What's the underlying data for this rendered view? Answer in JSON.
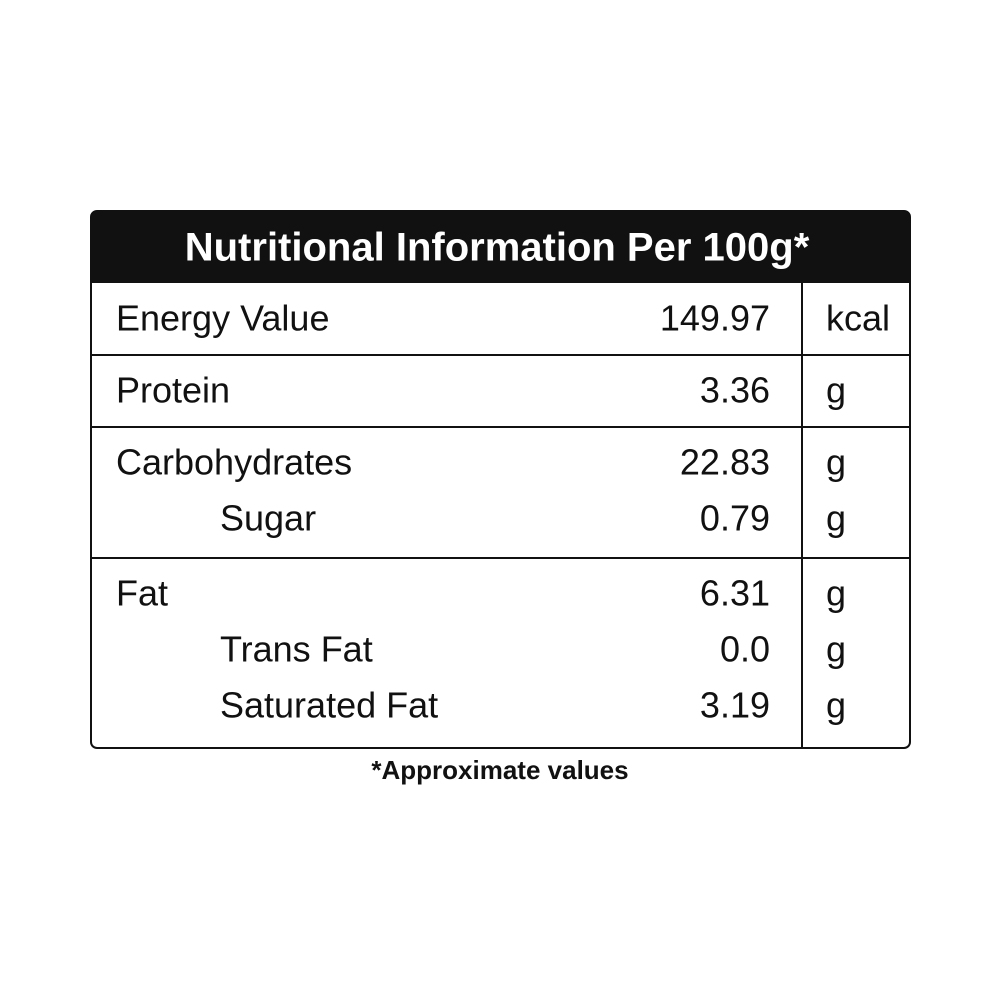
{
  "title": "Nutritional Information Per 100g*",
  "groups": [
    {
      "label": "Energy Value",
      "value": "149.97",
      "unit": "kcal",
      "sub": []
    },
    {
      "label": "Protein",
      "value": "3.36",
      "unit": "g",
      "sub": []
    },
    {
      "label": "Carbohydrates",
      "value": "22.83",
      "unit": "g",
      "sub": [
        {
          "label": "Sugar",
          "value": "0.79",
          "unit": "g"
        }
      ]
    },
    {
      "label": "Fat",
      "value": "6.31",
      "unit": "g",
      "sub": [
        {
          "label": "Trans Fat",
          "value": "0.0",
          "unit": "g"
        },
        {
          "label": "Saturated Fat",
          "value": "3.19",
          "unit": "g"
        }
      ]
    }
  ],
  "footnote": "*Approximate values"
}
